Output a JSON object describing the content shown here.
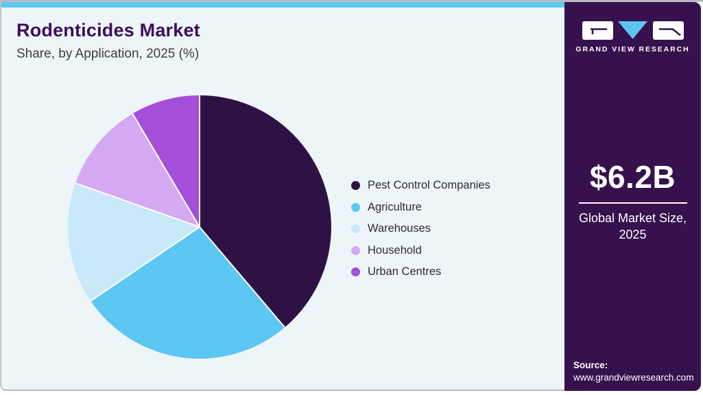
{
  "header": {
    "title": "Rodenticides Market",
    "subtitle": "Share, by Application, 2025 (%)"
  },
  "chart_data": {
    "type": "pie",
    "title": "Rodenticides Market Share, by Application, 2025 (%)",
    "unit": "percent",
    "start_angle_deg": 0,
    "direction": "clockwise",
    "legend_position": "right",
    "slices": [
      {
        "label": "Pest Control Companies",
        "value": 38.8,
        "color": "#2e1245"
      },
      {
        "label": "Agriculture",
        "value": 26.7,
        "color": "#5bc7f2"
      },
      {
        "label": "Warehouses",
        "value": 14.9,
        "color": "#c7e9fa"
      },
      {
        "label": "Household",
        "value": 11.1,
        "color": "#d5a8f2"
      },
      {
        "label": "Urban Centres",
        "value": 8.5,
        "color": "#a44fd9"
      }
    ]
  },
  "sidebar": {
    "logo_text": "GRAND VIEW RESEARCH",
    "market_size_value": "$6.2B",
    "market_size_label_line1": "Global Market Size,",
    "market_size_label_line2": "2025",
    "source_label": "Source:",
    "source_url": "www.grandviewresearch.com"
  },
  "colors": {
    "accent_bar": "#5ec8ef",
    "card_background": "#eef5f9",
    "title_text": "#3d0d5e",
    "sidebar_background": "#37114d",
    "logo_triangle": "#5bc5f0",
    "slice_separator": "#ffffff"
  }
}
